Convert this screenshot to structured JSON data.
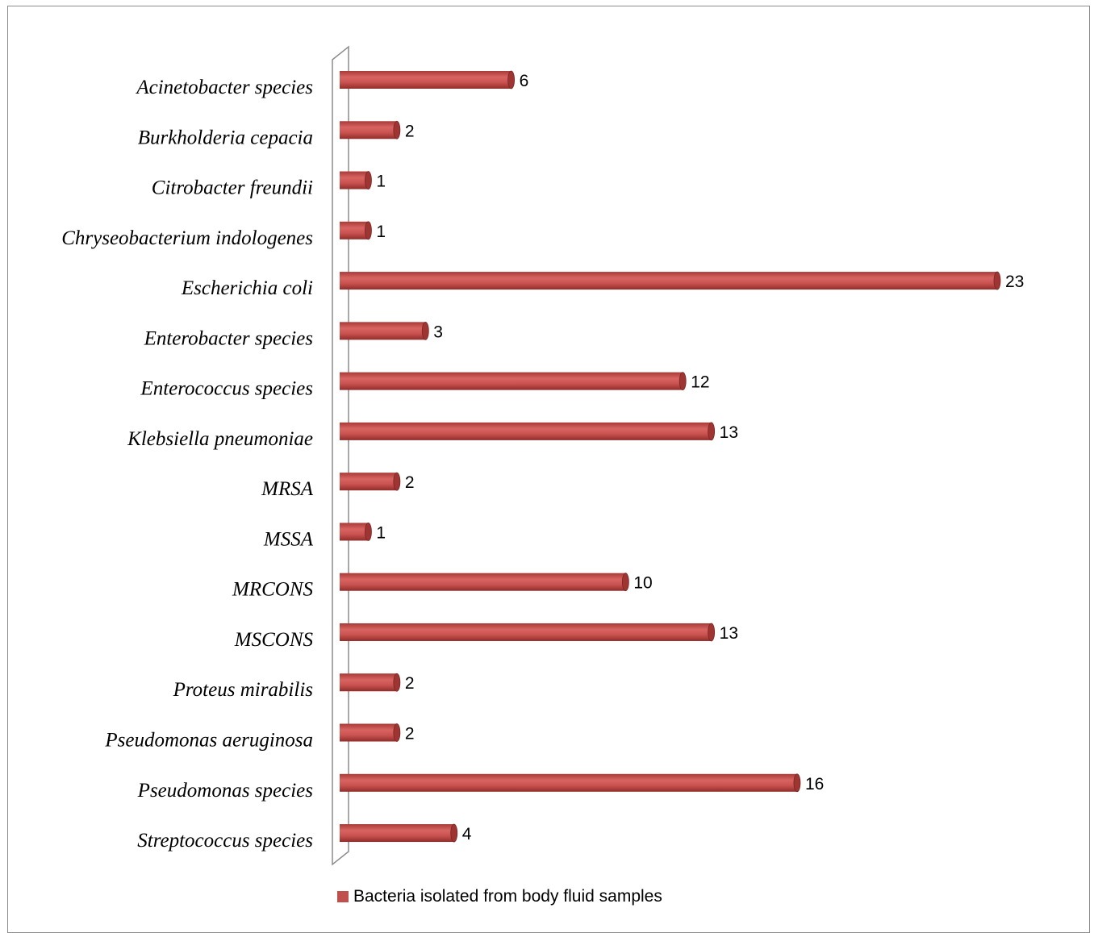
{
  "chart_data": {
    "type": "bar",
    "orientation": "horizontal",
    "categories": [
      "Acinetobacter species",
      "Burkholderia cepacia",
      "Citrobacter freundii",
      "Chryseobacterium indologenes",
      "Escherichia coli",
      "Enterobacter species",
      "Enterococcus species",
      "Klebsiella pneumoniae",
      "MRSA",
      "MSSA",
      "MRCONS",
      "MSCONS",
      "Proteus mirabilis",
      "Pseudomonas aeruginosa",
      "Pseudomonas species",
      "Streptococcus species"
    ],
    "series": [
      {
        "name": "Bacteria isolated from body fluid samples",
        "values": [
          6,
          2,
          1,
          1,
          23,
          3,
          12,
          13,
          2,
          1,
          10,
          13,
          2,
          2,
          16,
          4
        ],
        "color": "#c0504d"
      }
    ],
    "xlim": [
      0,
      23
    ],
    "grid": false,
    "data_labels": true,
    "legend_position": "bottom"
  }
}
